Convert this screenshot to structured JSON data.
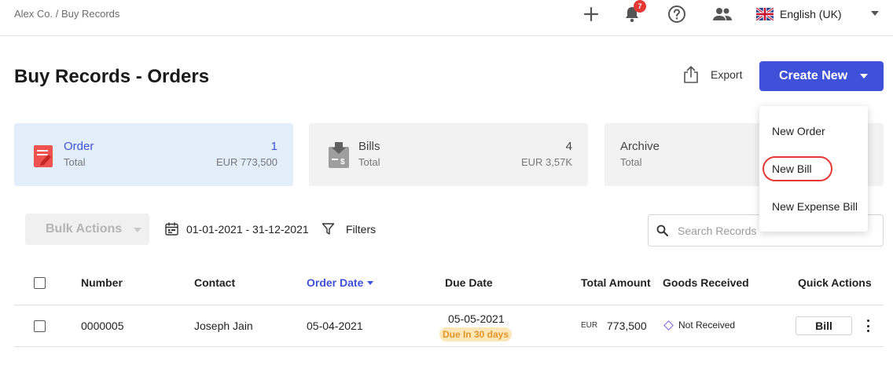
{
  "breadcrumb": "Alex Co. / Buy Records",
  "topbar": {
    "notification_count": "7",
    "language": "English (UK)"
  },
  "page": {
    "title": "Buy Records - Orders",
    "export_label": "Export",
    "create_label": "Create New"
  },
  "menu": {
    "items": [
      "New Order",
      "New Bill",
      "New Expense Bill"
    ]
  },
  "cards": [
    {
      "title": "Order",
      "sub": "Total",
      "count": "1",
      "amount": "EUR 773,500"
    },
    {
      "title": "Bills",
      "sub": "Total",
      "count": "4",
      "amount": "EUR 3,57K"
    },
    {
      "title": "Archive",
      "sub": "Total",
      "count": "",
      "amount": ""
    }
  ],
  "toolbar": {
    "bulk_label": "Bulk Actions",
    "date_range": "01-01-2021 - 31-12-2021",
    "filters_label": "Filters",
    "search_placeholder": "Search Records"
  },
  "table": {
    "headers": {
      "number": "Number",
      "contact": "Contact",
      "order_date": "Order Date",
      "due_date": "Due Date",
      "total": "Total Amount",
      "goods": "Goods Received",
      "actions": "Quick Actions"
    },
    "rows": [
      {
        "number": "0000005",
        "contact": "Joseph Jain",
        "order_date": "05-04-2021",
        "due_date": "05-05-2021",
        "due_badge": "Due In 30 days",
        "currency": "EUR",
        "amount": "773,500",
        "goods": "Not Received",
        "action": "Bill"
      }
    ]
  },
  "colors": {
    "accent": "#3f51d8",
    "highlight": "#e53935",
    "badge_bg": "#fde7b8",
    "badge_text": "#e0952a"
  }
}
